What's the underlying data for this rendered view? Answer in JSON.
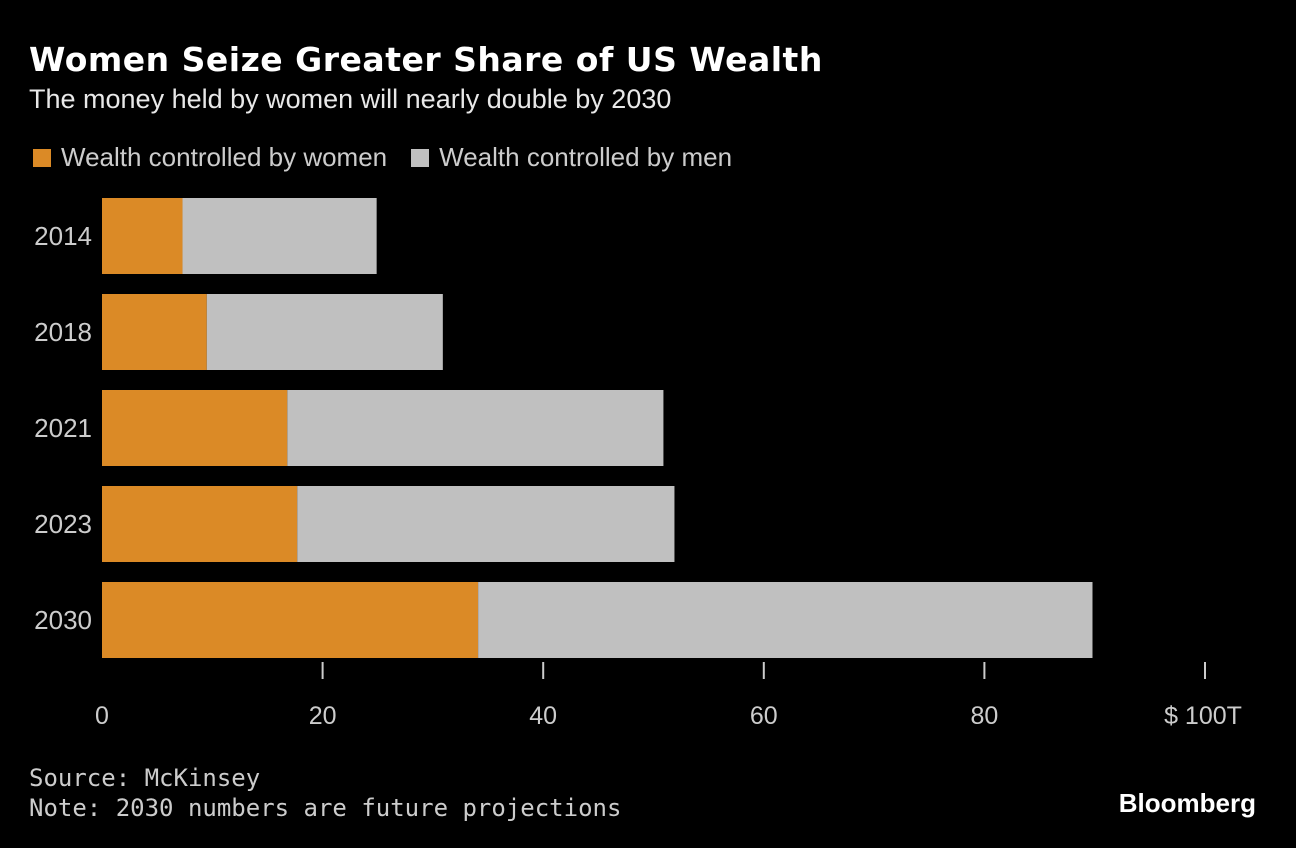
{
  "chart_data": {
    "type": "bar",
    "orientation": "horizontal",
    "stacked": true,
    "title": "Women Seize Greater Share of US Wealth",
    "subtitle": "The money held by women will nearly double by 2030",
    "categories": [
      "2014",
      "2018",
      "2021",
      "2023",
      "2030"
    ],
    "series": [
      {
        "name": "Wealth controlled by women",
        "color": "#db8a26",
        "values": [
          7.3,
          9.5,
          16.8,
          17.7,
          34.1
        ]
      },
      {
        "name": "Wealth controlled by men",
        "color": "#c0c0c0",
        "values": [
          17.6,
          21.4,
          34.1,
          34.2,
          55.7
        ]
      }
    ],
    "xlim": [
      0,
      100
    ],
    "xticks": [
      "0",
      "20",
      "40",
      "60",
      "80",
      "$ 100T"
    ],
    "xtick_values": [
      0,
      20,
      40,
      60,
      80,
      100
    ],
    "legend": "top-left",
    "grid": false
  },
  "source": "Source: McKinsey",
  "note": "Note: 2030 numbers are future projections",
  "brand": "Bloomberg"
}
